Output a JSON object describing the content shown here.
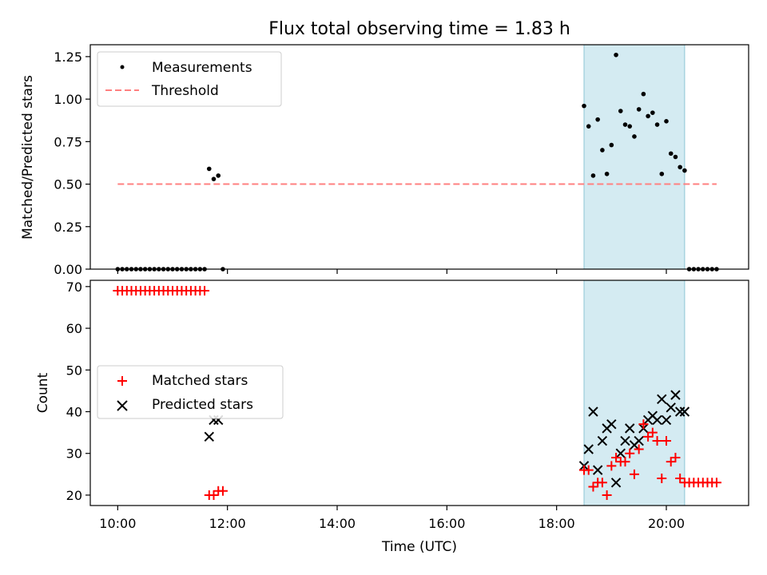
{
  "chart_data": [
    {
      "type": "scatter",
      "title": "Flux total observing time = 1.83 h",
      "xlabel": "",
      "ylabel": "Matched/Predicted stars",
      "xlim": [
        "09:30",
        "21:30"
      ],
      "ylim": [
        0,
        1.32
      ],
      "yticks": [
        "0.00",
        "0.25",
        "0.50",
        "0.75",
        "1.00",
        "1.25"
      ],
      "ytick_values": [
        0,
        0.25,
        0.5,
        0.75,
        1.0,
        1.25
      ],
      "grid": false,
      "legend": "top-left",
      "legend_entries": [
        "Measurements",
        "Threshold"
      ],
      "shaded_span": [
        "18:30",
        "20:20"
      ],
      "shade_color": "#add8e6",
      "threshold": {
        "name": "Threshold",
        "y": 0.5,
        "x": [
          "10:00",
          "20:55"
        ],
        "color": "#ff8080"
      },
      "series": [
        {
          "name": "Measurements",
          "color": "#000000",
          "x": [
            "10:00",
            "10:05",
            "10:10",
            "10:15",
            "10:20",
            "10:25",
            "10:30",
            "10:35",
            "10:40",
            "10:45",
            "10:50",
            "10:55",
            "11:00",
            "11:05",
            "11:10",
            "11:15",
            "11:20",
            "11:25",
            "11:30",
            "11:35",
            "11:40",
            "11:45",
            "11:50",
            "11:55",
            "18:30",
            "18:35",
            "18:40",
            "18:45",
            "18:50",
            "18:55",
            "19:00",
            "19:05",
            "19:10",
            "19:15",
            "19:20",
            "19:25",
            "19:30",
            "19:35",
            "19:40",
            "19:45",
            "19:50",
            "19:55",
            "20:00",
            "20:05",
            "20:10",
            "20:15",
            "20:20",
            "20:25",
            "20:30",
            "20:35",
            "20:40",
            "20:45",
            "20:50",
            "20:55"
          ],
          "values": [
            0,
            0,
            0,
            0,
            0,
            0,
            0,
            0,
            0,
            0,
            0,
            0,
            0,
            0,
            0,
            0,
            0,
            0,
            0,
            0,
            0.59,
            0.53,
            0.55,
            0,
            0.96,
            0.84,
            0.55,
            0.88,
            0.7,
            0.56,
            0.73,
            1.26,
            0.93,
            0.85,
            0.84,
            0.78,
            0.94,
            1.03,
            0.9,
            0.92,
            0.85,
            0.56,
            0.87,
            0.68,
            0.66,
            0.6,
            0.58,
            0,
            0,
            0,
            0,
            0,
            0,
            0
          ]
        }
      ]
    },
    {
      "type": "scatter",
      "title": "",
      "xlabel": "Time (UTC)",
      "ylabel": "Count",
      "xlim": [
        "09:30",
        "21:30"
      ],
      "xticks": [
        "10:00",
        "12:00",
        "14:00",
        "16:00",
        "18:00",
        "20:00"
      ],
      "ylim": [
        17.5,
        71.5
      ],
      "yticks": [
        "20",
        "30",
        "40",
        "50",
        "60",
        "70"
      ],
      "ytick_values": [
        20,
        30,
        40,
        50,
        60,
        70
      ],
      "grid": false,
      "legend": "center-left",
      "legend_entries": [
        "Matched stars",
        "Predicted stars"
      ],
      "shaded_span": [
        "18:30",
        "20:20"
      ],
      "shade_color": "#add8e6",
      "series": [
        {
          "name": "Matched stars",
          "marker": "+",
          "color": "#ff0000",
          "x": [
            "10:00",
            "10:05",
            "10:10",
            "10:15",
            "10:20",
            "10:25",
            "10:30",
            "10:35",
            "10:40",
            "10:45",
            "10:50",
            "10:55",
            "11:00",
            "11:05",
            "11:10",
            "11:15",
            "11:20",
            "11:25",
            "11:30",
            "11:35",
            "11:40",
            "11:45",
            "11:50",
            "11:55",
            "18:30",
            "18:35",
            "18:40",
            "18:45",
            "18:50",
            "18:55",
            "19:00",
            "19:05",
            "19:10",
            "19:15",
            "19:20",
            "19:25",
            "19:30",
            "19:35",
            "19:40",
            "19:45",
            "19:50",
            "19:55",
            "20:00",
            "20:05",
            "20:10",
            "20:15",
            "20:20",
            "20:25",
            "20:30",
            "20:35",
            "20:40",
            "20:45",
            "20:50",
            "20:55"
          ],
          "values": [
            69,
            69,
            69,
            69,
            69,
            69,
            69,
            69,
            69,
            69,
            69,
            69,
            69,
            69,
            69,
            69,
            69,
            69,
            69,
            69,
            20,
            20,
            21,
            21,
            26,
            26,
            22,
            23,
            23,
            20,
            27,
            29,
            28,
            28,
            30,
            25,
            31,
            37,
            34,
            35,
            33,
            24,
            33,
            28,
            29,
            24,
            23,
            23,
            23,
            23,
            23,
            23,
            23,
            23
          ]
        },
        {
          "name": "Predicted stars",
          "marker": "x",
          "color": "#000000",
          "x": [
            "11:40",
            "11:45",
            "11:50",
            "18:30",
            "18:35",
            "18:40",
            "18:45",
            "18:50",
            "18:55",
            "19:00",
            "19:05",
            "19:10",
            "19:15",
            "19:20",
            "19:25",
            "19:30",
            "19:35",
            "19:40",
            "19:45",
            "19:50",
            "19:55",
            "20:00",
            "20:05",
            "20:10",
            "20:15",
            "20:20"
          ],
          "values": [
            34,
            38,
            38,
            27,
            31,
            40,
            26,
            33,
            36,
            37,
            23,
            30,
            33,
            36,
            32,
            33,
            36,
            38,
            39,
            38,
            43,
            38,
            41,
            44,
            40,
            40
          ]
        }
      ]
    }
  ]
}
